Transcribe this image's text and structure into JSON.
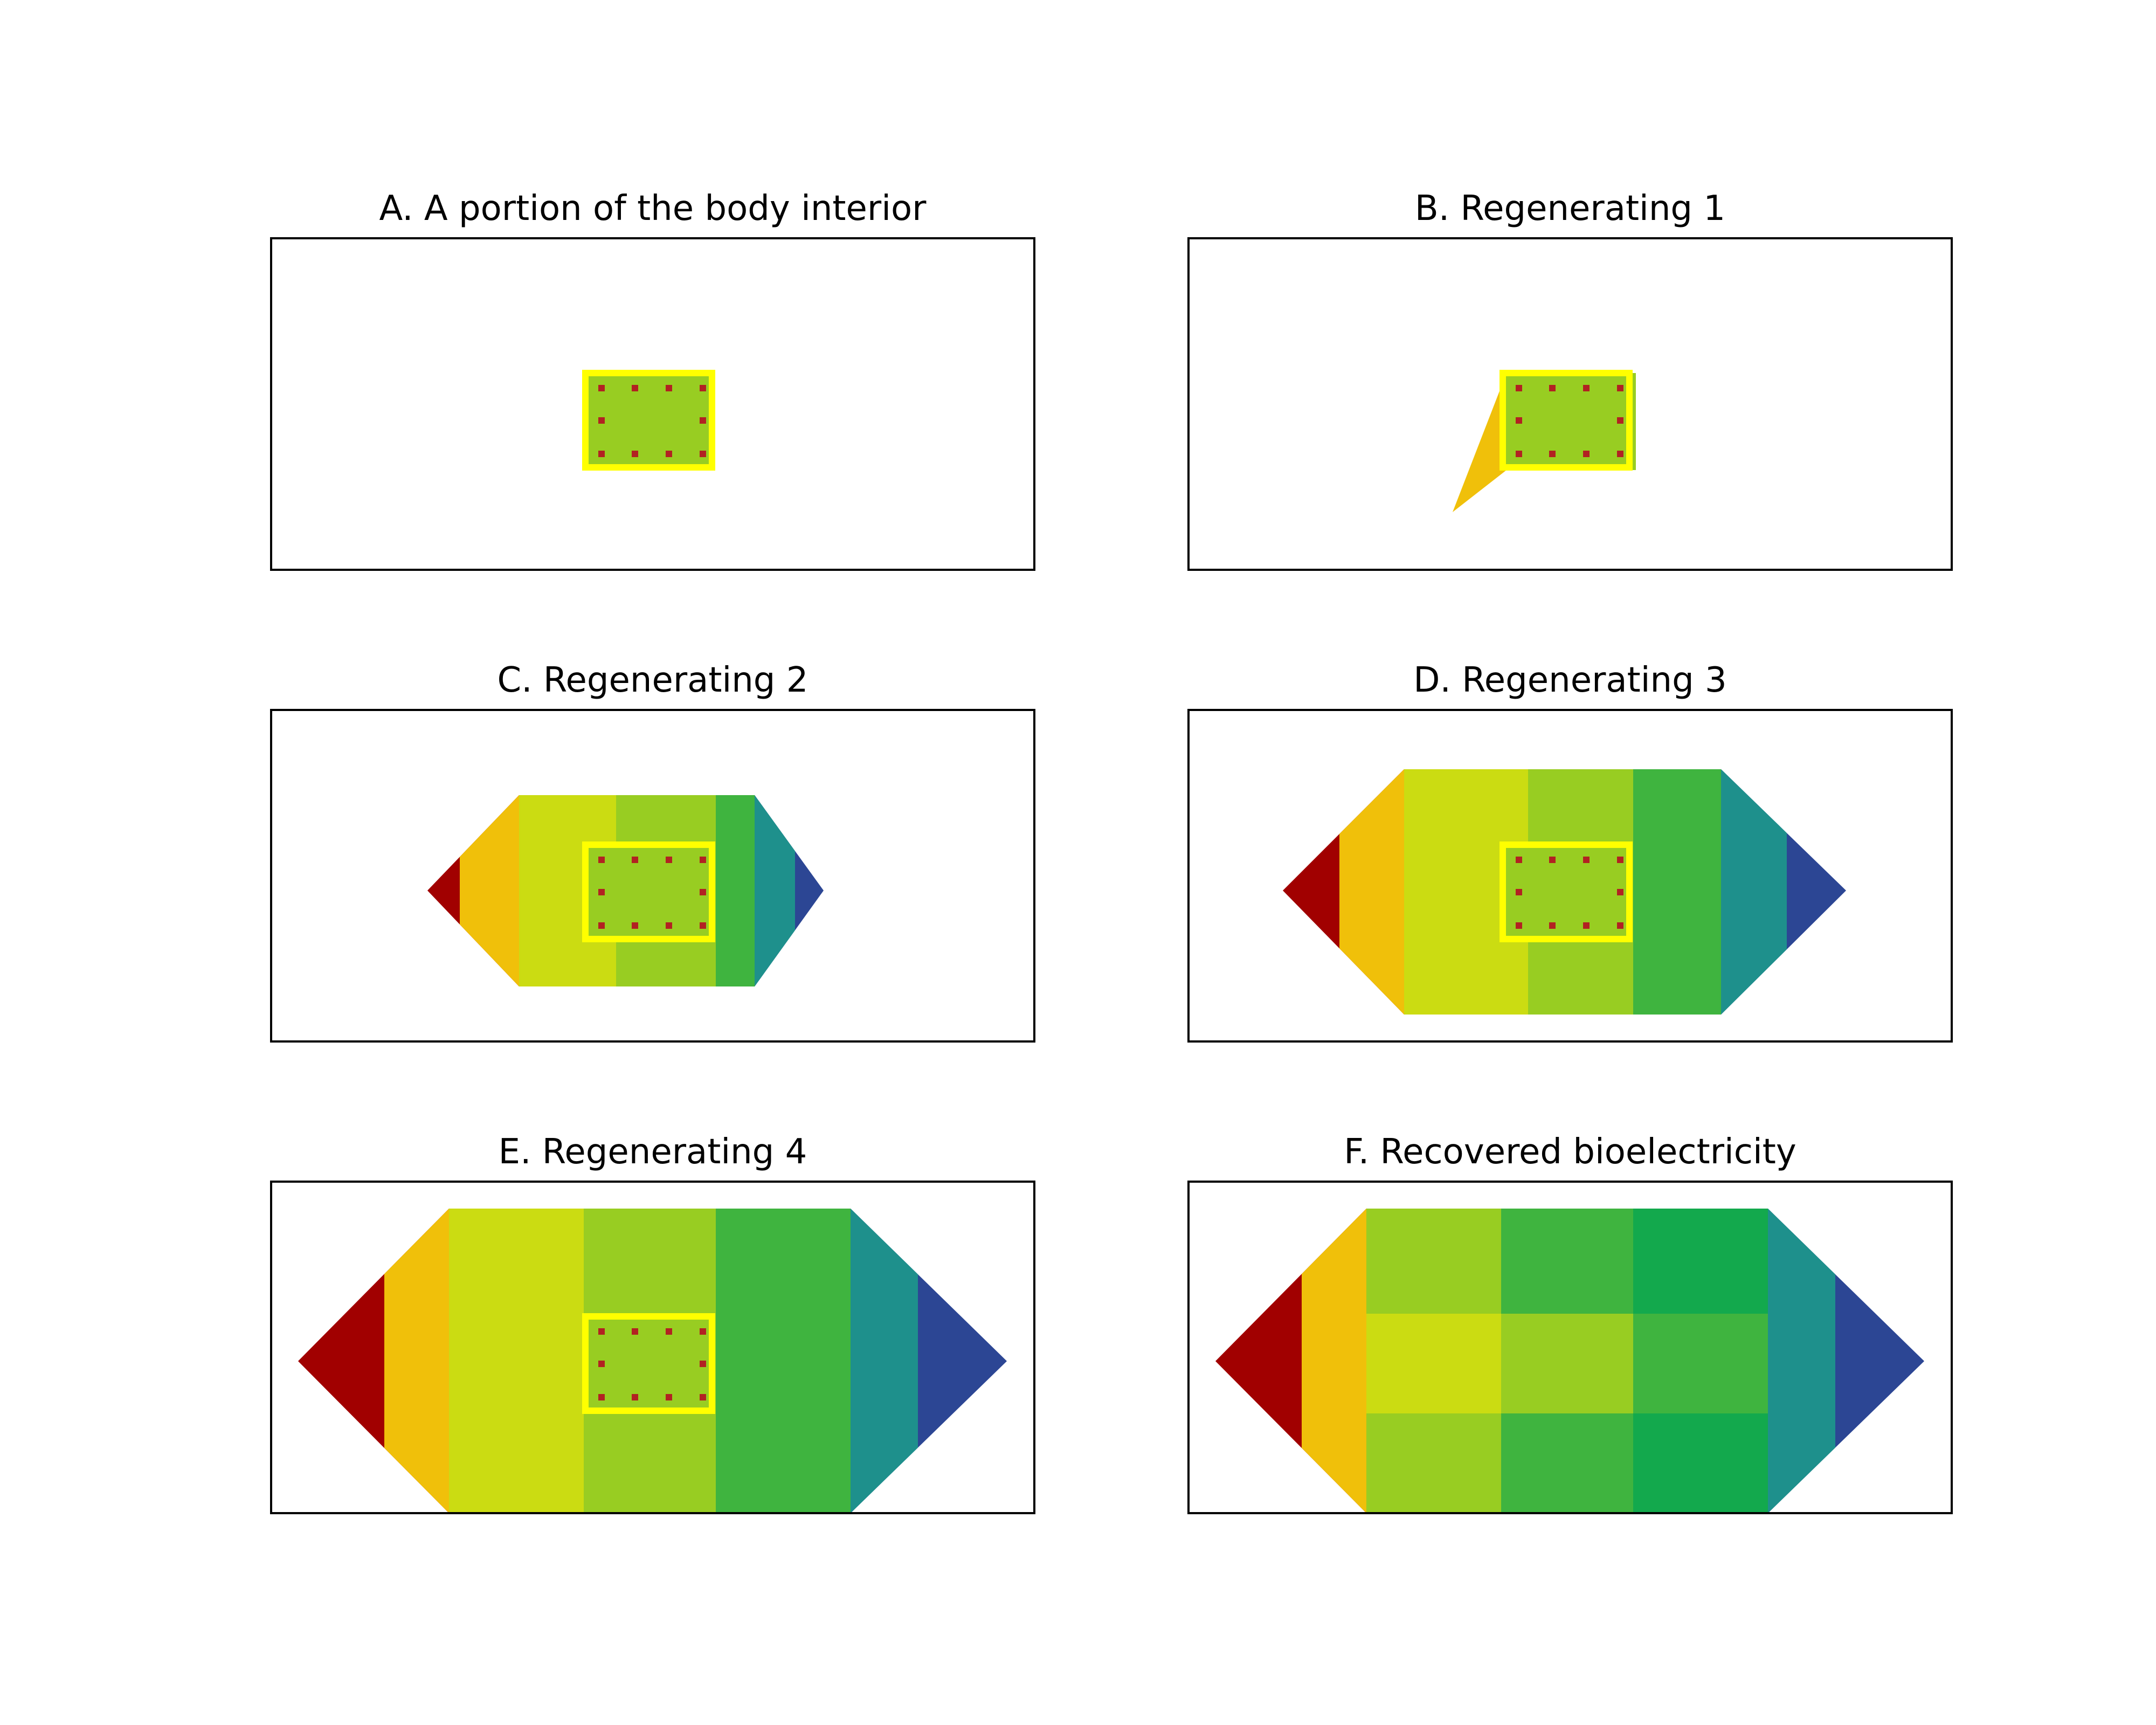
{
  "panels": [
    {
      "title": "A. A portion of the body interior",
      "shape": "none",
      "center_visible": true,
      "fill": "none"
    },
    {
      "title": "B. Regenerating 1",
      "shape": "small",
      "center_visible": true,
      "fill": "bands"
    },
    {
      "title": "C. Regenerating 2",
      "shape": "medium",
      "center_visible": true,
      "fill": "bands"
    },
    {
      "title": "D. Regenerating 3",
      "shape": "large",
      "center_visible": true,
      "fill": "bands"
    },
    {
      "title": "E. Regenerating 4",
      "shape": "full",
      "center_visible": true,
      "fill": "bands"
    },
    {
      "title": "F. Recovered bioelectricity",
      "shape": "full",
      "center_visible": false,
      "fill": "grid"
    }
  ],
  "colors": {
    "dark_red": "#a10000",
    "orange": "#f0c00a",
    "yellow_green": "#cbdc12",
    "lime": "#98cd22",
    "green": "#3fb43f",
    "emerald": "#13a94d",
    "teal": "#1e908c",
    "navy": "#2c4694",
    "center_outline": "#ffff00",
    "center_dots": "#b22222"
  }
}
